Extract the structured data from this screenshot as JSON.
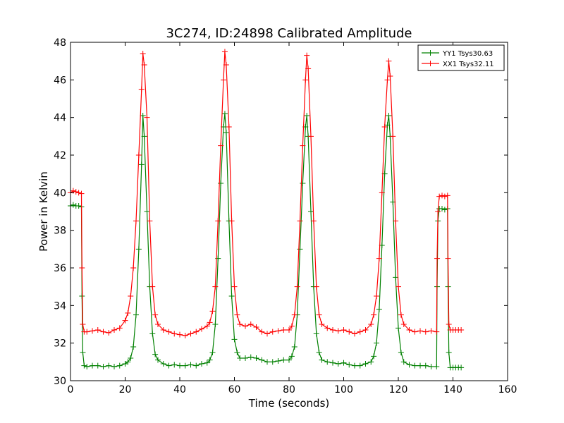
{
  "chart_data": {
    "type": "line",
    "title": "3C274, ID:24898 Calibrated Amplitude",
    "xlabel": "Time (seconds)",
    "ylabel": "Power in Kelvin",
    "xlim": [
      0,
      160
    ],
    "ylim": [
      30,
      48
    ],
    "xticks": [
      "0",
      "20",
      "40",
      "60",
      "80",
      "100",
      "120",
      "140",
      "160"
    ],
    "yticks": [
      "30",
      "32",
      "34",
      "36",
      "38",
      "40",
      "42",
      "44",
      "46",
      "48"
    ],
    "grid": false,
    "legend_position": "top-right",
    "marker": "+",
    "series": [
      {
        "name": "YY1 Tsys30.63",
        "color": "#008000",
        "x": [
          0,
          1,
          2,
          3,
          4,
          4.2,
          4.5,
          5,
          6,
          8,
          10,
          12,
          14,
          16,
          18,
          20,
          21,
          22,
          23,
          24,
          25,
          26,
          26.5,
          27,
          28,
          29,
          30,
          31,
          32,
          34,
          36,
          38,
          40,
          42,
          44,
          46,
          48,
          50,
          51,
          52,
          53,
          54,
          55,
          56,
          56.5,
          57,
          58,
          59,
          60,
          61,
          62,
          64,
          66,
          68,
          70,
          72,
          74,
          76,
          78,
          80,
          81,
          82,
          83,
          84,
          85,
          86,
          86.5,
          87,
          88,
          89,
          90,
          91,
          92,
          94,
          96,
          98,
          100,
          102,
          104,
          106,
          108,
          110,
          111,
          112,
          113,
          114,
          115,
          116,
          116.5,
          117,
          118,
          119,
          120,
          121,
          122,
          124,
          126,
          128,
          130,
          132,
          134,
          134.2,
          134.5,
          135,
          136,
          137,
          138,
          138.2,
          138.5,
          139,
          140,
          141,
          142,
          143
        ],
        "y": [
          39.3,
          39.35,
          39.3,
          39.3,
          39.25,
          34.5,
          31.5,
          30.8,
          30.75,
          30.8,
          30.8,
          30.75,
          30.8,
          30.75,
          30.8,
          30.9,
          31.0,
          31.2,
          31.8,
          33.5,
          37.0,
          41.5,
          44.1,
          43.0,
          39.0,
          35.0,
          32.5,
          31.4,
          31.1,
          30.9,
          30.8,
          30.85,
          30.8,
          30.8,
          30.85,
          30.8,
          30.9,
          30.95,
          31.1,
          31.5,
          33.0,
          36.5,
          40.5,
          43.5,
          44.2,
          43.2,
          38.5,
          34.5,
          32.2,
          31.5,
          31.2,
          31.2,
          31.25,
          31.2,
          31.1,
          31.0,
          31.0,
          31.05,
          31.1,
          31.1,
          31.3,
          31.8,
          33.5,
          37.0,
          40.5,
          43.5,
          44.1,
          43.0,
          39.0,
          35.0,
          32.5,
          31.5,
          31.1,
          31.0,
          30.95,
          30.9,
          30.95,
          30.85,
          30.8,
          30.8,
          30.9,
          31.0,
          31.3,
          32.0,
          33.8,
          37.2,
          41.0,
          43.6,
          44.1,
          43.0,
          39.5,
          35.5,
          32.8,
          31.5,
          31.0,
          30.85,
          30.8,
          30.8,
          30.8,
          30.75,
          30.75,
          35.0,
          38.5,
          39.15,
          39.15,
          39.1,
          39.15,
          35.0,
          31.5,
          30.7,
          30.7,
          30.7,
          30.7,
          30.7
        ]
      },
      {
        "name": "XX1 Tsys32.11",
        "color": "#ff0000",
        "x": [
          0,
          1,
          2,
          3,
          4,
          4.2,
          4.5,
          5,
          6,
          8,
          10,
          12,
          14,
          16,
          18,
          20,
          21,
          22,
          23,
          24,
          25,
          26,
          26.5,
          27,
          28,
          29,
          30,
          31,
          32,
          34,
          36,
          38,
          40,
          42,
          44,
          46,
          48,
          50,
          51,
          52,
          53,
          54,
          55,
          56,
          56.5,
          57,
          58,
          59,
          60,
          61,
          62,
          64,
          66,
          68,
          70,
          72,
          74,
          76,
          78,
          80,
          81,
          82,
          83,
          84,
          85,
          86,
          86.5,
          87,
          88,
          89,
          90,
          91,
          92,
          94,
          96,
          98,
          100,
          102,
          104,
          106,
          108,
          110,
          111,
          112,
          113,
          114,
          115,
          116,
          116.5,
          117,
          118,
          119,
          120,
          121,
          122,
          124,
          126,
          128,
          130,
          132,
          134,
          134.2,
          134.5,
          135,
          136,
          137,
          138,
          138.2,
          138.5,
          139,
          140,
          141,
          142,
          143
        ],
        "y": [
          40.0,
          40.1,
          40.05,
          40.0,
          39.95,
          36.0,
          33.0,
          32.6,
          32.6,
          32.65,
          32.7,
          32.6,
          32.55,
          32.7,
          32.8,
          33.2,
          33.6,
          34.5,
          36.0,
          38.5,
          42.0,
          45.5,
          47.4,
          46.8,
          44.0,
          38.5,
          35.0,
          33.5,
          33.0,
          32.7,
          32.6,
          32.5,
          32.45,
          32.4,
          32.5,
          32.6,
          32.75,
          32.9,
          33.1,
          33.7,
          35.0,
          38.5,
          42.5,
          46.0,
          47.5,
          46.8,
          43.5,
          38.5,
          35.0,
          33.5,
          33.0,
          32.9,
          33.0,
          32.85,
          32.6,
          32.5,
          32.6,
          32.65,
          32.7,
          32.7,
          32.9,
          33.5,
          35.0,
          38.5,
          42.5,
          46.0,
          47.3,
          46.6,
          43.0,
          38.5,
          35.0,
          33.5,
          33.0,
          32.8,
          32.7,
          32.65,
          32.7,
          32.6,
          32.5,
          32.6,
          32.7,
          33.0,
          33.5,
          34.5,
          36.5,
          40.0,
          43.5,
          46.0,
          47.0,
          46.2,
          43.0,
          38.5,
          35.0,
          33.5,
          33.0,
          32.7,
          32.6,
          32.65,
          32.6,
          32.65,
          32.6,
          36.5,
          39.0,
          39.8,
          39.85,
          39.8,
          39.85,
          36.5,
          33.0,
          32.7,
          32.7,
          32.7,
          32.7,
          32.7
        ]
      }
    ]
  }
}
